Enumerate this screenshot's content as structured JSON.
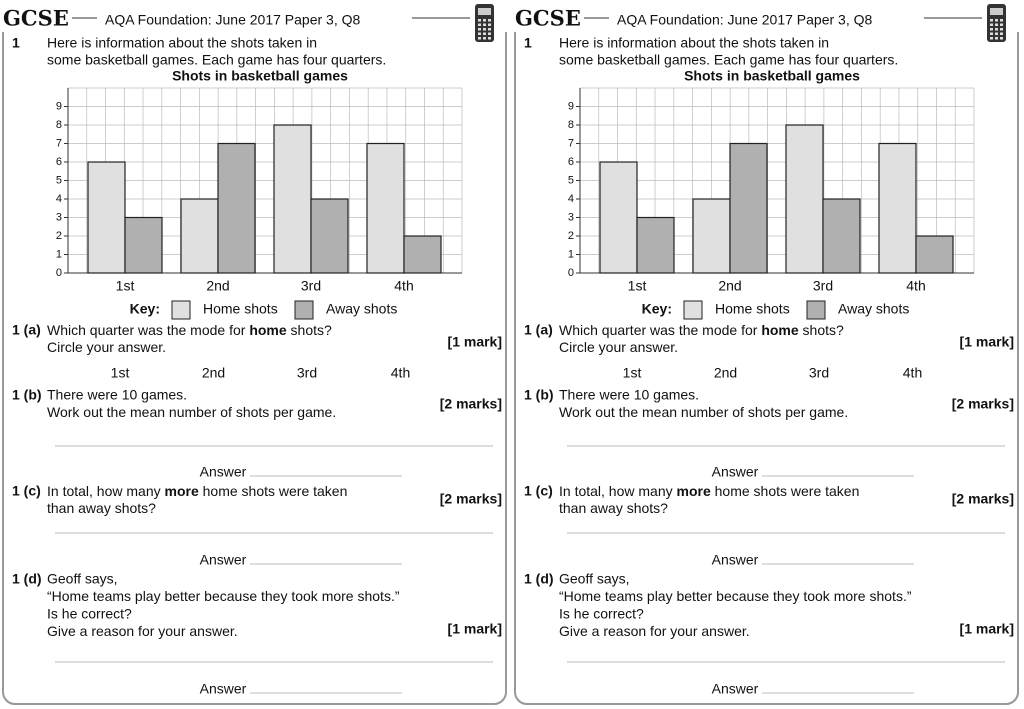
{
  "header": {
    "logo": "GCSE",
    "title": "AQA Foundation: June 2017 Paper 3, Q8"
  },
  "question": {
    "number": "1",
    "lines": [
      "Here is information about the shots taken in",
      "some basketball games. Each game has four quarters."
    ]
  },
  "chart_data": {
    "type": "bar",
    "title": "Shots in basketball games",
    "categories": [
      "1st",
      "2nd",
      "3rd",
      "4th"
    ],
    "series": [
      {
        "name": "Home shots",
        "color": "#e0e0e0",
        "values": [
          6,
          4,
          8,
          7
        ]
      },
      {
        "name": "Away shots",
        "color": "#b0b0b0",
        "values": [
          3,
          7,
          4,
          2
        ]
      }
    ],
    "ylim": [
      0,
      10
    ],
    "yticks": [
      0,
      1,
      2,
      3,
      4,
      5,
      6,
      7,
      8,
      9
    ],
    "grid": true,
    "legend_title": "Key:"
  },
  "parts": [
    {
      "label": "1 (a)",
      "lines": [
        [
          "Which quarter was the mode for ",
          {
            "bold": "home"
          },
          " shots?"
        ],
        "Circle your answer."
      ],
      "marks": "[1 mark]"
    },
    {
      "label": "1 (b)",
      "lines": [
        "There were 10 games.",
        "Work out the mean number of shots per game."
      ],
      "marks": "[2 marks]",
      "answer": "Answer"
    },
    {
      "label": "1 (c)",
      "lines": [
        [
          "In total, how many ",
          {
            "bold": "more"
          },
          " home shots were taken"
        ],
        "than away shots?"
      ],
      "marks": "[2 marks]",
      "answer": "Answer"
    },
    {
      "label": "1 (d)",
      "lines": [
        "Geoff says,",
        "“Home teams play better because they took more shots.”",
        "Is he correct?",
        "Give a reason for your answer."
      ],
      "marks": "[1 mark]",
      "answer": "Answer"
    }
  ]
}
